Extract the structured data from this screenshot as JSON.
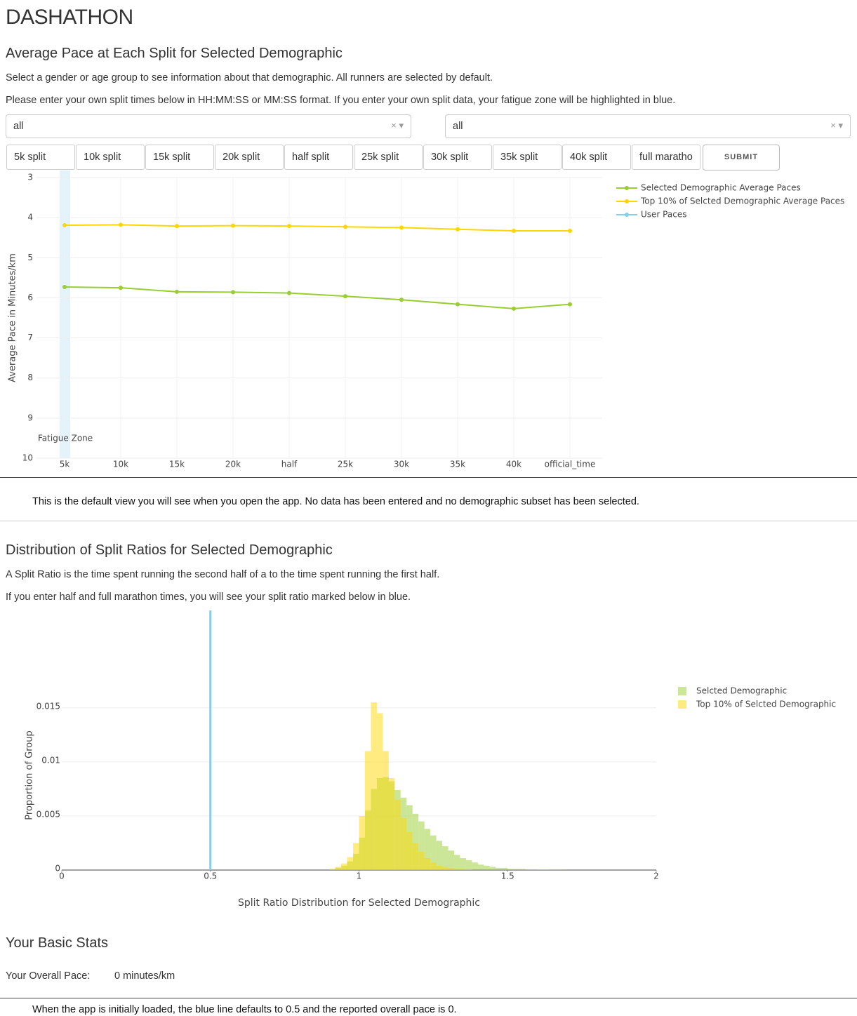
{
  "header": {
    "title": "DASHATHON"
  },
  "pace_section": {
    "heading": "Average Pace at Each Split for Selected Demographic",
    "paragraphs": [
      "Select a gender or age group to see information about that demographic. All runners are selected by default.",
      "Please enter your own split times below in HH:MM:SS or MM:SS format. If you enter your own split data, your fatigue zone will be highlighted in blue."
    ],
    "dropdowns": [
      "all",
      "all"
    ],
    "split_inputs": [
      "5k split",
      "10k split",
      "15k split",
      "20k split",
      "half split",
      "25k split",
      "30k split",
      "35k split",
      "40k split",
      "full maratho"
    ],
    "submit": "SUBMIT",
    "caption": "This is the default view you will see when you open the app. No data has been entered and no demographic subset has been selected."
  },
  "ratio_section": {
    "heading": "Distribution of Split Ratios for Selected Demographic",
    "paragraphs": [
      "A Split Ratio is the time spent running the second half of a to the time spent running the first half.",
      "If you enter half and full marathon times, you will see your split ratio marked below in blue."
    ]
  },
  "stats_section": {
    "heading": "Your Basic Stats",
    "label": "Your Overall Pace:",
    "value": "0 minutes/km",
    "caption": "When the app is initially loaded, the blue line defaults to 0.5 and the reported overall pace is 0."
  },
  "chart_data": [
    {
      "type": "line",
      "y_label": "Average Pace in Minutes/km",
      "annotation": "Fatigue Zone",
      "categories": [
        "5k",
        "10k",
        "15k",
        "20k",
        "half",
        "25k",
        "30k",
        "35k",
        "40k",
        "official_time"
      ],
      "series": [
        {
          "name": "Selected Demographic Average Paces",
          "color": "#9acd32",
          "values": [
            5.73,
            5.75,
            5.85,
            5.86,
            5.88,
            5.96,
            6.05,
            6.16,
            6.27,
            6.16
          ]
        },
        {
          "name": "Top 10% of Selcted Demographic Average Paces",
          "color": "#ffd700",
          "values": [
            4.19,
            4.18,
            4.21,
            4.2,
            4.21,
            4.23,
            4.25,
            4.29,
            4.33,
            4.33
          ]
        },
        {
          "name": "User Paces",
          "color": "#87ceeb",
          "values": [
            null,
            null,
            null,
            null,
            null,
            null,
            null,
            null,
            null,
            null
          ]
        }
      ],
      "ylim": [
        3,
        10
      ],
      "y_reversed": true,
      "yticks": [
        3,
        4,
        5,
        6,
        7,
        8,
        9,
        10
      ],
      "grid": true
    },
    {
      "type": "histogram",
      "x_label": "Split Ratio Distribution for Selected Demographic",
      "y_label": "Proportion of Group",
      "bins": [
        0.9,
        0.92,
        0.94,
        0.96,
        0.98,
        1.0,
        1.02,
        1.04,
        1.06,
        1.08,
        1.1,
        1.12,
        1.14,
        1.16,
        1.18,
        1.2,
        1.22,
        1.24,
        1.26,
        1.28,
        1.3,
        1.32,
        1.34,
        1.36,
        1.38,
        1.4,
        1.42,
        1.44,
        1.46,
        1.48,
        1.5,
        1.52,
        1.54,
        1.56,
        1.58,
        1.6,
        1.62,
        1.64,
        1.66,
        1.68,
        1.7
      ],
      "series": [
        {
          "name": "Selcted Demographic",
          "color": "#9acd32",
          "values": [
            0.0001,
            0.0002,
            0.0004,
            0.0008,
            0.0015,
            0.003,
            0.0055,
            0.0075,
            0.0085,
            0.0086,
            0.0082,
            0.0074,
            0.0067,
            0.006,
            0.0052,
            0.0045,
            0.0038,
            0.0032,
            0.0027,
            0.0022,
            0.0018,
            0.0014,
            0.0011,
            0.0009,
            0.0007,
            0.0005,
            0.0004,
            0.0003,
            0.0002,
            0.0002,
            0.0001,
            0.0001,
            0.0001,
            5e-05,
            5e-05,
            3e-05,
            3e-05,
            2e-05,
            2e-05,
            1e-05
          ]
        },
        {
          "name": "Top 10% of Selcted Demographic",
          "color": "#ffd700",
          "values": [
            0.0001,
            0.0003,
            0.0006,
            0.0012,
            0.0025,
            0.005,
            0.011,
            0.0155,
            0.0145,
            0.011,
            0.0085,
            0.0065,
            0.0048,
            0.0035,
            0.0025,
            0.0017,
            0.0011,
            0.0007,
            0.0004,
            0.0003,
            0.0002,
            0.0001,
            0.0001,
            5e-05,
            0,
            0,
            0,
            0,
            0,
            0,
            0,
            0,
            0,
            0,
            0,
            0,
            0,
            0,
            0,
            0
          ]
        }
      ],
      "user_ratio": 0.5,
      "user_ratio_color": "#87cedf",
      "xlim": [
        0,
        2
      ],
      "xticks": [
        0,
        0.5,
        1,
        1.5,
        2
      ],
      "ylim": [
        0,
        0.024
      ],
      "yticks": [
        0,
        0.005,
        0.01,
        0.015
      ],
      "grid": true
    }
  ]
}
